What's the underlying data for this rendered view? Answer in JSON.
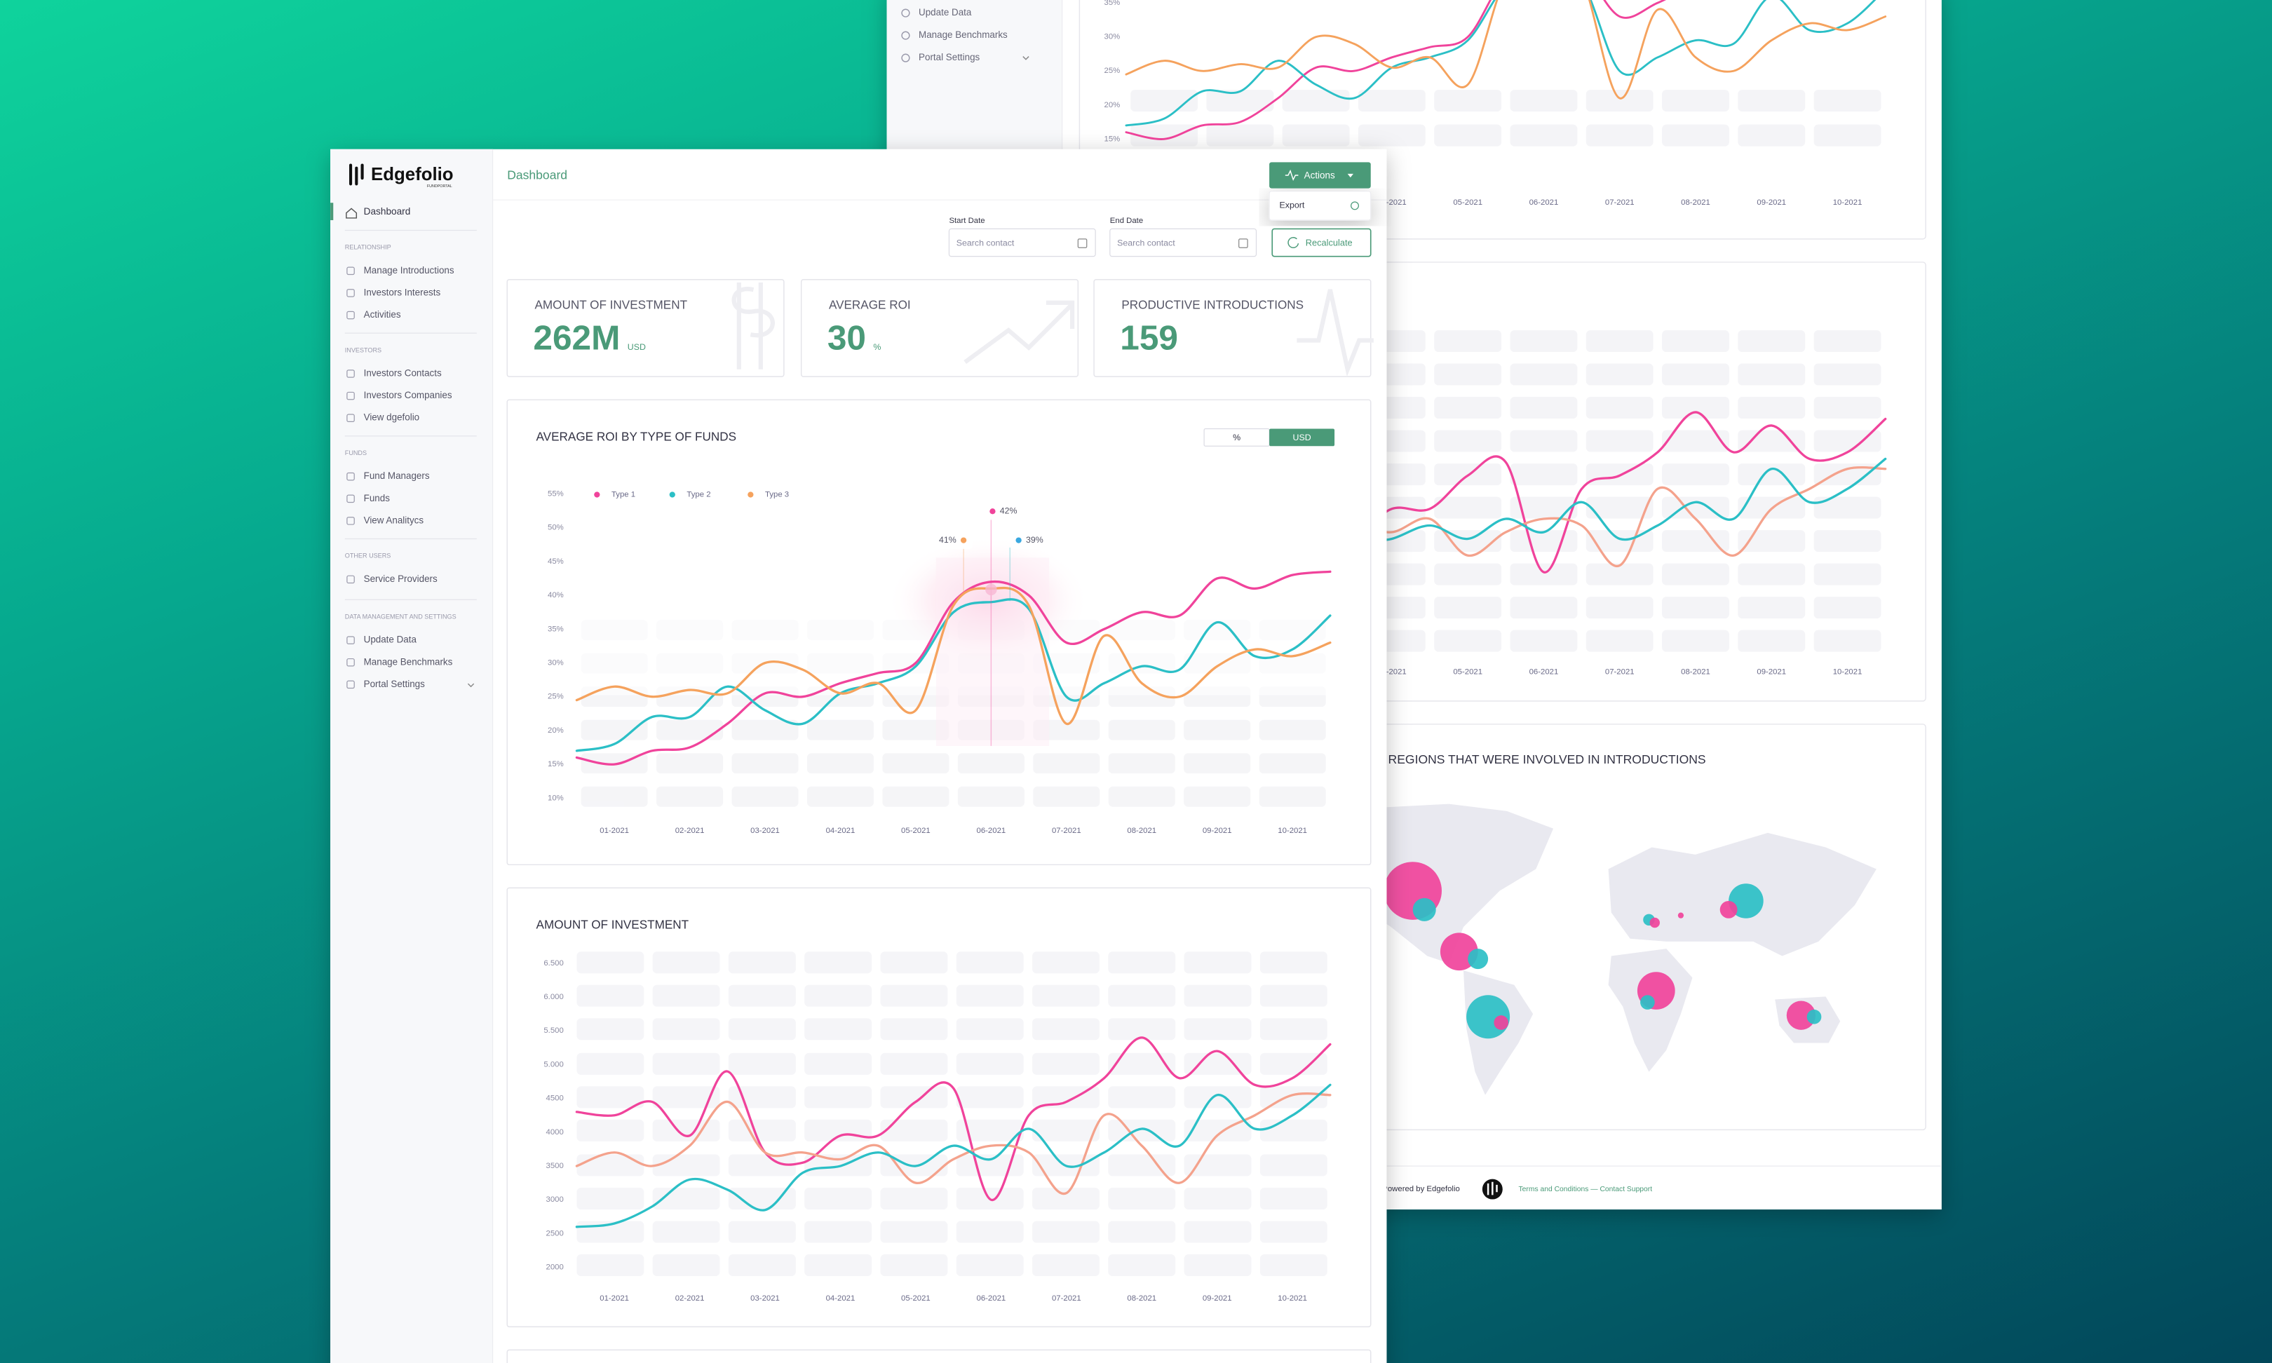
{
  "back_window": {
    "sidebar": [
      "Update Data",
      "Manage Benchmarks",
      "Portal Settings"
    ],
    "map_title": "REGIONS THAT WERE INVOLVED IN INTRODUCTIONS",
    "footer": {
      "powered": "Powered by Edgefolio",
      "links": "Terms and Conditions — Contact Support"
    }
  },
  "sidebar": {
    "logo": "Edgefolio",
    "logo_sub": "FUNDPORTAL",
    "active": "Dashboard",
    "sections": [
      {
        "title": "RELATIONSHIP",
        "items": [
          "Manage Introductions",
          "Investors Interests",
          "Activities"
        ]
      },
      {
        "title": "INVESTORS",
        "items": [
          "Investors Contacts",
          "Investors Companies",
          "View dgefolio"
        ]
      },
      {
        "title": "FUNDS",
        "items": [
          "Fund Managers",
          "Funds",
          "View Analitycs"
        ]
      },
      {
        "title": "OTHER USERS",
        "items": [
          "Service Providers"
        ]
      },
      {
        "title": "DATA MANAGEMENT AND SETTINGS",
        "items": [
          "Update Data",
          "Manage Benchmarks",
          "Portal Settings"
        ]
      }
    ]
  },
  "header": {
    "title": "Dashboard",
    "actions": "Actions",
    "export": "Export",
    "start_label": "Start Date",
    "start_placeholder": "Search contact",
    "end_label": "End Date",
    "end_placeholder": "Search contact",
    "recalculate": "Recalculate"
  },
  "kpis": [
    {
      "label": "AMOUNT OF INVESTMENT",
      "value": "262M",
      "unit": "USD"
    },
    {
      "label": "AVERAGE ROI",
      "value": "30",
      "unit": "%"
    },
    {
      "label": "PRODUCTIVE INTRODUCTIONS",
      "value": "159"
    }
  ],
  "chart_data": [
    {
      "type": "line",
      "title": "AVERAGE ROI BY TYPE OF FUNDS",
      "toggle": [
        "%",
        "USD"
      ],
      "x": [
        0.5,
        1,
        1.5,
        2,
        2.5,
        3,
        3.5,
        4,
        4.5,
        5,
        5.5,
        6,
        6.5,
        7,
        7.5,
        8,
        8.5,
        9,
        9.5,
        10,
        10.5
      ],
      "xlim": [
        0.5,
        10.5
      ],
      "xticks": [
        {
          "value": 1,
          "label": "01-2021"
        },
        {
          "value": 2,
          "label": "02-2021"
        },
        {
          "value": 3,
          "label": "03-2021"
        },
        {
          "value": 4,
          "label": "04-2021"
        },
        {
          "value": 5,
          "label": "05-2021"
        },
        {
          "value": 6,
          "label": "06-2021"
        },
        {
          "value": 7,
          "label": "07-2021"
        },
        {
          "value": 8,
          "label": "08-2021"
        },
        {
          "value": 9,
          "label": "09-2021"
        },
        {
          "value": 10,
          "label": "10-2021"
        }
      ],
      "ylim": [
        10,
        55
      ],
      "yticks": [
        {
          "value": 10,
          "label": "10%"
        },
        {
          "value": 15,
          "label": "15%"
        },
        {
          "value": 20,
          "label": "20%"
        },
        {
          "value": 25,
          "label": "25%"
        },
        {
          "value": 30,
          "label": "30%"
        },
        {
          "value": 35,
          "label": "35%"
        },
        {
          "value": 40,
          "label": "40%"
        },
        {
          "value": 45,
          "label": "45%"
        },
        {
          "value": 50,
          "label": "50%"
        },
        {
          "value": 55,
          "label": "55%"
        }
      ],
      "series": [
        {
          "name": "Type 1",
          "color": "#f0439b",
          "values": [
            16,
            15,
            17,
            17.5,
            21,
            25.5,
            25,
            27,
            28.5,
            30,
            39,
            42,
            40,
            33,
            35,
            37.5,
            37,
            42.5,
            41,
            43,
            43.5
          ]
        },
        {
          "name": "Type 2",
          "color": "#2bbfc6",
          "values": [
            17,
            18,
            22,
            22,
            26.5,
            23,
            21,
            25.5,
            27,
            29.5,
            37.5,
            39,
            38,
            25,
            27,
            29.5,
            29,
            36,
            31,
            32,
            37
          ]
        },
        {
          "name": "Type 3",
          "color": "#f5a25d",
          "values": [
            24.5,
            26.5,
            25,
            26,
            25.5,
            30,
            29,
            25.5,
            27,
            23,
            38.5,
            41,
            38.5,
            21,
            34,
            27,
            25,
            29.5,
            32,
            31,
            33
          ]
        }
      ],
      "tooltip_labels": [
        "42%",
        "41%",
        "39%"
      ]
    },
    {
      "type": "line",
      "title": "AMOUNT OF INVESTMENT",
      "x": [
        0.5,
        1,
        1.5,
        2,
        2.5,
        3,
        3.5,
        4,
        4.5,
        5,
        5.5,
        6,
        6.5,
        7,
        7.5,
        8,
        8.5,
        9,
        9.5,
        10,
        10.5
      ],
      "xlim": [
        0.5,
        10.5
      ],
      "xticks": [
        {
          "value": 1,
          "label": "01-2021"
        },
        {
          "value": 2,
          "label": "02-2021"
        },
        {
          "value": 3,
          "label": "03-2021"
        },
        {
          "value": 4,
          "label": "04-2021"
        },
        {
          "value": 5,
          "label": "05-2021"
        },
        {
          "value": 6,
          "label": "06-2021"
        },
        {
          "value": 7,
          "label": "07-2021"
        },
        {
          "value": 8,
          "label": "08-2021"
        },
        {
          "value": 9,
          "label": "09-2021"
        },
        {
          "value": 10,
          "label": "10-2021"
        }
      ],
      "ylim": [
        2000,
        6500
      ],
      "yticks": [
        2000,
        2500,
        3000,
        3500,
        4000,
        4500,
        {
          "value": 5000,
          "label": "5.000"
        },
        {
          "value": 5500,
          "label": "5.500"
        },
        {
          "value": 6000,
          "label": "6.000"
        },
        {
          "value": 6500,
          "label": "6.500"
        }
      ],
      "series": [
        {
          "color": "#f0439b",
          "values": [
            4300,
            4250,
            4450,
            3950,
            4900,
            3700,
            3550,
            3950,
            3950,
            4450,
            4650,
            3000,
            4250,
            4450,
            4800,
            5400,
            4800,
            5200,
            4700,
            4800,
            5300
          ]
        },
        {
          "color": "#f4a28c",
          "values": [
            3500,
            3700,
            3500,
            3800,
            4450,
            3700,
            3700,
            3600,
            3800,
            3250,
            3600,
            3800,
            3700,
            3100,
            4250,
            3800,
            3250,
            3950,
            4250,
            4550,
            4550
          ]
        },
        {
          "color": "#2bbfc6",
          "values": [
            2600,
            2650,
            2900,
            3300,
            3150,
            2850,
            3400,
            3500,
            3700,
            3500,
            3800,
            3600,
            4050,
            3500,
            3700,
            4050,
            3800,
            4550,
            4050,
            4250,
            4700
          ]
        }
      ]
    }
  ]
}
